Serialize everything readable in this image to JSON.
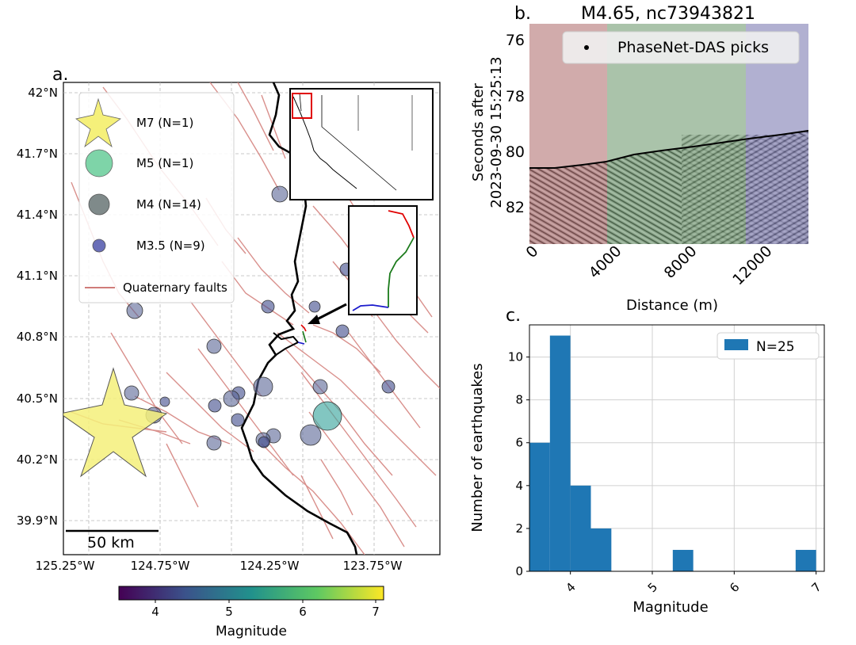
{
  "panel_labels": {
    "a": "a.",
    "b": "b.",
    "c": "c."
  },
  "map": {
    "lat_ticks": [
      "42°N",
      "41.7°N",
      "41.4°N",
      "41.1°N",
      "40.8°N",
      "40.5°N",
      "40.2°N",
      "39.9°N"
    ],
    "lon_ticks": [
      "125.25°W",
      "124.75°W",
      "124.25°W",
      "123.75°W"
    ],
    "scalebar": "50 km",
    "legend": {
      "m7": "M7 (N=1)",
      "m5": "M5 (N=1)",
      "m4": "M4 (N=14)",
      "m35": "M3.5 (N=9)",
      "faults": "Quaternary faults"
    },
    "colorbar": {
      "label": "Magnitude",
      "ticks": [
        "4",
        "5",
        "6",
        "7"
      ],
      "range": [
        3.5,
        7.1
      ]
    },
    "colors": {
      "fault": "#d9908c",
      "coast": "#000000",
      "star": "#f5f07a",
      "das_red": "#e00000",
      "das_green": "#1a7a1a",
      "das_blue": "#1a1acc"
    }
  },
  "das": {
    "title": "M4.65, nc73943821",
    "ylabel_line1": "Seconds after",
    "ylabel_line2": "2023-09-30 15:25:13",
    "xlabel": "Distance (m)",
    "yticks": [
      "76",
      "78",
      "80",
      "82"
    ],
    "xticks": [
      "0",
      "4000",
      "8000",
      "12000"
    ],
    "legend": "PhaseNet-DAS picks",
    "segment_colors": {
      "red": "#b47070",
      "green": "#6d9a6d",
      "blue": "#7a78b4"
    }
  },
  "chart_data": {
    "type": "bar",
    "xlabel": "Magnitude",
    "ylabel": "Number of earthquakes",
    "legend": "N=25",
    "bar_color": "#1f77b4",
    "xlim": [
      3.5,
      7.1
    ],
    "ylim": [
      0,
      11.5
    ],
    "xticks": [
      "4",
      "5",
      "6",
      "7"
    ],
    "yticks": [
      "0",
      "2",
      "4",
      "6",
      "8",
      "10"
    ],
    "bins": [
      {
        "start": 3.5,
        "end": 3.75,
        "count": 6
      },
      {
        "start": 3.75,
        "end": 4.0,
        "count": 11
      },
      {
        "start": 4.0,
        "end": 4.25,
        "count": 4
      },
      {
        "start": 4.25,
        "end": 4.5,
        "count": 2
      },
      {
        "start": 5.25,
        "end": 5.5,
        "count": 1
      },
      {
        "start": 6.75,
        "end": 7.0,
        "count": 1
      }
    ]
  }
}
